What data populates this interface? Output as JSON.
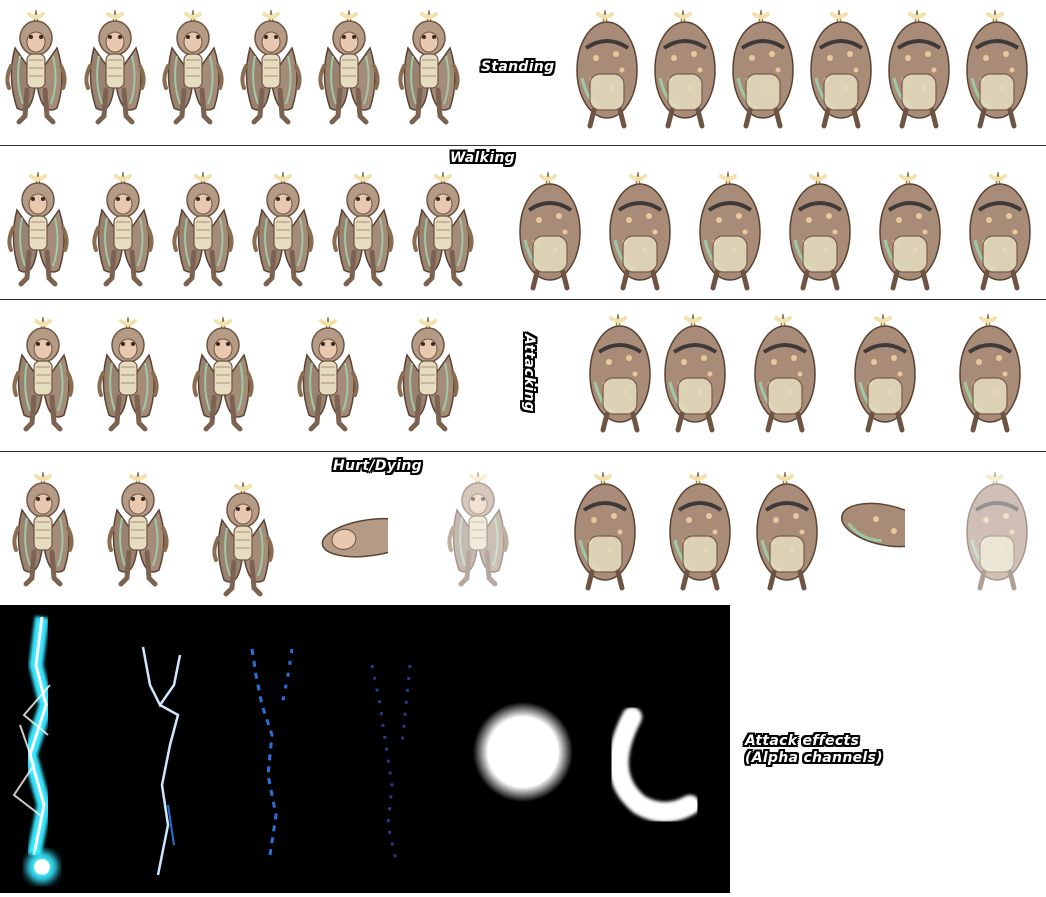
{
  "labels": {
    "standing": "Standing",
    "walking": "Walking",
    "attacking": "Attacking",
    "hurt_dying": "Hurt/Dying",
    "effects_line1": "Attack effects",
    "effects_line2": "(Alpha channels)"
  },
  "colors": {
    "background": "#ffffff",
    "divider": "#333333",
    "body_main": "#b59a86",
    "body_dark": "#7c6251",
    "armor_light": "#e6dcc0",
    "armor_green": "#9fc9a6",
    "horn": "#f2e1a9",
    "spots": "#e8c99c",
    "effects_bg": "#000000",
    "lightning_cyan": "#37e6ff",
    "lightning_blue": "#2a6fd8"
  },
  "rows": [
    {
      "name": "standing",
      "front_frames": 6,
      "back_frames": 6
    },
    {
      "name": "walking",
      "front_frames": 6,
      "back_frames": 6
    },
    {
      "name": "attacking",
      "front_frames": 5,
      "back_frames": 5
    },
    {
      "name": "hurt_dying",
      "front_frames": 5,
      "back_frames": 5
    }
  ]
}
